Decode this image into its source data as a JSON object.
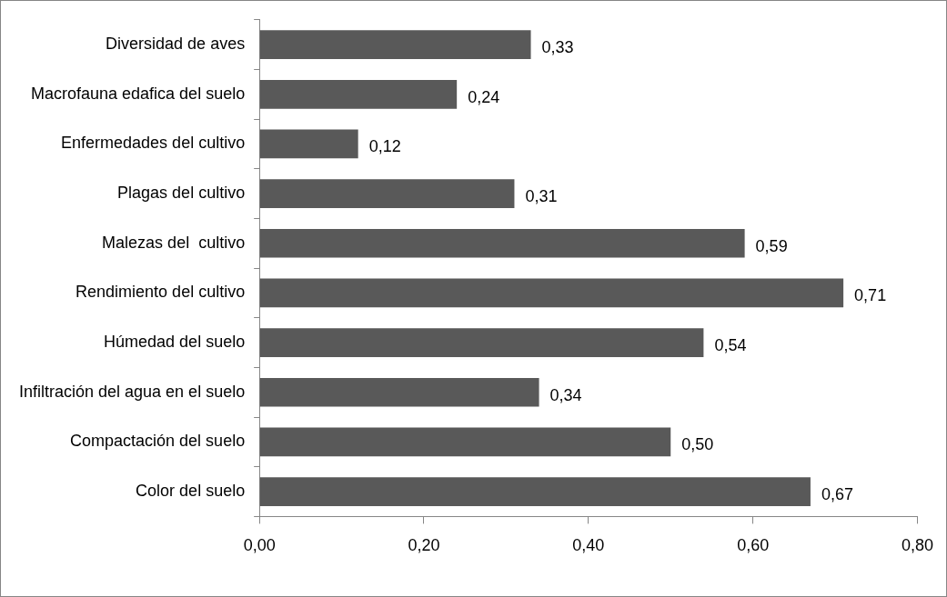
{
  "chart_data": {
    "type": "bar",
    "orientation": "horizontal",
    "categories": [
      "Diversidad de aves",
      "Macrofauna edafica del suelo",
      "Enfermedades del cultivo",
      "Plagas del cultivo",
      "Malezas del  cultivo",
      "Rendimiento del cultivo",
      "Húmedad del suelo",
      "Infiltración del agua en el suelo",
      "Compactación del suelo",
      "Color del suelo"
    ],
    "values": [
      0.33,
      0.24,
      0.12,
      0.31,
      0.59,
      0.71,
      0.54,
      0.34,
      0.5,
      0.67
    ],
    "value_labels": [
      "0,33",
      "0,24",
      "0,12",
      "0,31",
      "0,59",
      "0,71",
      "0,54",
      "0,34",
      "0,50",
      "0,67"
    ],
    "color": "#595959",
    "xlim": [
      0,
      0.8
    ],
    "xticks": [
      {
        "value": 0,
        "label": "0,00"
      },
      {
        "value": 0.2,
        "label": "0,20"
      },
      {
        "value": 0.4,
        "label": "0,40"
      },
      {
        "value": 0.6,
        "label": "0,60"
      },
      {
        "value": 0.8,
        "label": "0,80"
      }
    ],
    "grid": false,
    "legend": false
  }
}
